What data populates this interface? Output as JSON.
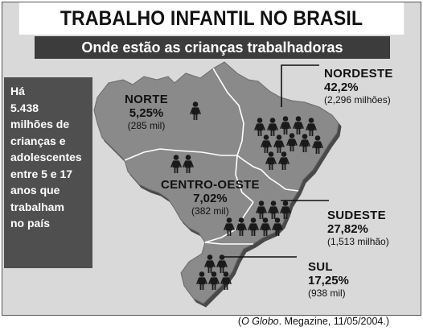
{
  "title": "TRABALHO INFANTIL NO BRASIL",
  "subtitle": "Onde estão as crianças trabalhadoras",
  "sidebox_lines": [
    "Há",
    "5.438",
    "milhões de",
    "crianças e",
    "adolescentes",
    "entre 5 e 17",
    "anos que",
    "trabalham",
    "no país"
  ],
  "regions": {
    "norte": {
      "name": "NORTE",
      "percent": "5,25%",
      "population": "(285 mil)"
    },
    "nordeste": {
      "name": "NORDESTE",
      "percent": "42,2%",
      "population": "(2,296 milhões)"
    },
    "centro_oeste": {
      "name": "CENTRO-OESTE",
      "percent": "7,02%",
      "population": "(382 mil)"
    },
    "sudeste": {
      "name": "SUDESTE",
      "percent": "27,82%",
      "population": "(1,513 milhão)"
    },
    "sul": {
      "name": "SUL",
      "percent": "17,25%",
      "population": "(938 mil)"
    }
  },
  "credit": {
    "publication": "O Globo",
    "rest": ". Megazine, 11/05/2004.)"
  },
  "colors": {
    "map_land": "#8a8a8a",
    "region_border": "#ffffff",
    "figure": "#1a1a1a",
    "panel": "#4f4f4f",
    "background": "#d9d9d9"
  },
  "icons": [
    "child-worker-figure"
  ]
}
